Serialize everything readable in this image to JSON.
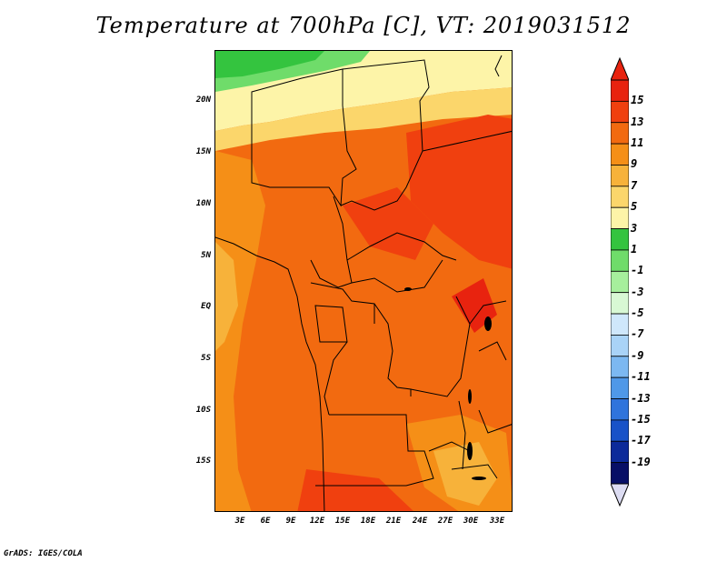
{
  "title": "Temperature at 700hPa [C], VT: 2019031512",
  "footer": "GrADS: IGES/COLA",
  "map": {
    "variable": "Temperature at 700hPa",
    "units": "C",
    "lat_labels": [
      "20N",
      "15N",
      "10N",
      "5N",
      "EQ",
      "5S",
      "10S",
      "15S"
    ],
    "lon_labels": [
      "3E",
      "6E",
      "9E",
      "12E",
      "15E",
      "18E",
      "21E",
      "24E",
      "27E",
      "30E",
      "33E"
    ]
  },
  "colorbar": {
    "labels": [
      "15",
      "13",
      "11",
      "9",
      "7",
      "5",
      "3",
      "1",
      "-1",
      "-3",
      "-5",
      "-7",
      "-9",
      "-11",
      "-13",
      "-15",
      "-17",
      "-19"
    ],
    "colors": [
      "#e8230f",
      "#f0400f",
      "#f26a10",
      "#f58f17",
      "#f7b23a",
      "#fbd66b",
      "#fdf4a8",
      "#34c43f",
      "#6fdc6a",
      "#a6ef9c",
      "#d8f8d4",
      "#cfe7fb",
      "#a9d3f7",
      "#7cb8f1",
      "#4f98e8",
      "#2f74dc",
      "#1852c8",
      "#0c2a9a",
      "#070f66"
    ],
    "top_arrow_color": "#e8230f",
    "bottom_arrow_color": "#dcdcf2"
  }
}
